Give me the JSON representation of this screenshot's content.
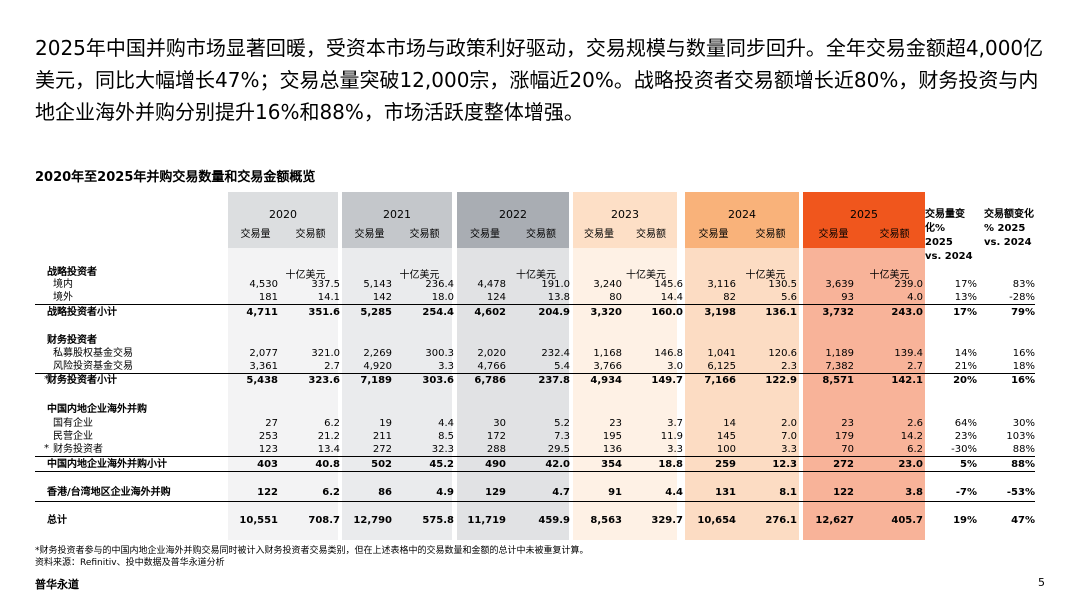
{
  "headline": "2025年中国并购市场显著回暖，受资本市场与政策利好驱动，交易规模与数量同步回升。全年交易金额超4,000亿美元，同比大幅增长47%；交易总量突破12,000宗，涨幅近20%。战略投资者交易额增长近80%，财务投资与内地企业海外并购分别提升16%和88%，市场活跃度整体增强。",
  "table_title": "2020年至2025年并购交易数量和交易金额概览",
  "years": [
    {
      "label": "2020",
      "vol": "交易量",
      "amt": "交易额",
      "color": "#dcdee0"
    },
    {
      "label": "2021",
      "vol": "交易量",
      "amt": "交易额",
      "color": "#c4c7cb"
    },
    {
      "label": "2022",
      "vol": "交易量",
      "amt": "交易额",
      "color": "#a9adb3"
    },
    {
      "label": "2023",
      "vol": "交易量",
      "amt": "交易额",
      "color": "#fddfc6"
    },
    {
      "label": "2024",
      "vol": "交易量",
      "amt": "交易额",
      "color": "#f9b27a"
    },
    {
      "label": "2025",
      "vol": "交易量",
      "amt": "交易额",
      "color": "#f0561d"
    }
  ],
  "change_headers": {
    "vol": [
      "交易量变",
      "化% 2025",
      "vs. 2024"
    ],
    "amt": [
      "交易额变化",
      "% 2025",
      "vs. 2024"
    ]
  },
  "unit": "十亿美元",
  "rows": [
    {
      "label": "战略投资者",
      "bold": true,
      "section": true
    },
    {
      "label": "境内",
      "vals": [
        "4,530",
        "337.5",
        "5,143",
        "236.4",
        "4,478",
        "191.0",
        "3,240",
        "145.6",
        "3,116",
        "130.5",
        "3,639",
        "239.0",
        "17%",
        "83%"
      ]
    },
    {
      "label": "境外",
      "vals": [
        "181",
        "14.1",
        "142",
        "18.0",
        "124",
        "13.8",
        "80",
        "14.4",
        "82",
        "5.6",
        "93",
        "4.0",
        "13%",
        "-28%"
      ]
    },
    {
      "label": "战略投资者小计",
      "bold": true,
      "vals": [
        "4,711",
        "351.6",
        "5,285",
        "254.4",
        "4,602",
        "204.9",
        "3,320",
        "160.0",
        "3,198",
        "136.1",
        "3,732",
        "243.0",
        "17%",
        "79%"
      ]
    },
    {
      "label": "财务投资者",
      "bold": true,
      "section": true
    },
    {
      "label": "私募股权基金交易",
      "vals": [
        "2,077",
        "321.0",
        "2,269",
        "300.3",
        "2,020",
        "232.4",
        "1,168",
        "146.8",
        "1,041",
        "120.6",
        "1,189",
        "139.4",
        "14%",
        "16%"
      ]
    },
    {
      "label": "风险投资基金交易",
      "vals": [
        "3,361",
        "2.7",
        "4,920",
        "3.3",
        "4,766",
        "5.4",
        "3,766",
        "3.0",
        "6,125",
        "2.3",
        "7,382",
        "2.7",
        "21%",
        "18%"
      ]
    },
    {
      "label": "财务投资者小计",
      "bold": true,
      "vals": [
        "5,438",
        "323.6",
        "7,189",
        "303.6",
        "6,786",
        "237.8",
        "4,934",
        "149.7",
        "7,166",
        "122.9",
        "8,571",
        "142.1",
        "20%",
        "16%"
      ]
    },
    {
      "label": "中国内地企业海外并购",
      "bold": true,
      "section": true
    },
    {
      "label": "国有企业",
      "vals": [
        "27",
        "6.2",
        "19",
        "4.4",
        "30",
        "5.2",
        "23",
        "3.7",
        "14",
        "2.0",
        "23",
        "2.6",
        "64%",
        "30%"
      ]
    },
    {
      "label": "民营企业",
      "vals": [
        "253",
        "21.2",
        "211",
        "8.5",
        "172",
        "7.3",
        "195",
        "11.9",
        "145",
        "7.0",
        "179",
        "14.2",
        "23%",
        "103%"
      ]
    },
    {
      "label": "财务投资者",
      "vals": [
        "123",
        "13.4",
        "272",
        "32.3",
        "288",
        "29.5",
        "136",
        "3.3",
        "100",
        "3.3",
        "70",
        "6.2",
        "-30%",
        "88%"
      ]
    },
    {
      "label": "中国内地企业海外并购小计",
      "bold": true,
      "vals": [
        "403",
        "40.8",
        "502",
        "45.2",
        "490",
        "42.0",
        "354",
        "18.8",
        "259",
        "12.3",
        "272",
        "23.0",
        "5%",
        "88%"
      ]
    },
    {
      "label": "香港/台湾地区企业海外并购",
      "bold": true,
      "vals": [
        "122",
        "6.2",
        "86",
        "4.9",
        "129",
        "4.7",
        "91",
        "4.4",
        "131",
        "8.1",
        "122",
        "3.8",
        "-7%",
        "-53%"
      ]
    },
    {
      "label": "总计",
      "bold": true,
      "vals": [
        "10,551",
        "708.7",
        "12,790",
        "575.8",
        "11,719",
        "459.9",
        "8,563",
        "329.7",
        "10,654",
        "276.1",
        "12,627",
        "405.7",
        "19%",
        "47%"
      ]
    }
  ],
  "asterisk": "*",
  "footnote1": "*财务投资者参与的中国内地企业海外并购交易同时被计入财务投资者交易类别，但在上述表格中的交易数量和金额的总计中未被重复计算。",
  "footnote2": "资料来源：Refinitiv、投中数据及普华永道分析",
  "brand": "普华永道",
  "page": "5"
}
